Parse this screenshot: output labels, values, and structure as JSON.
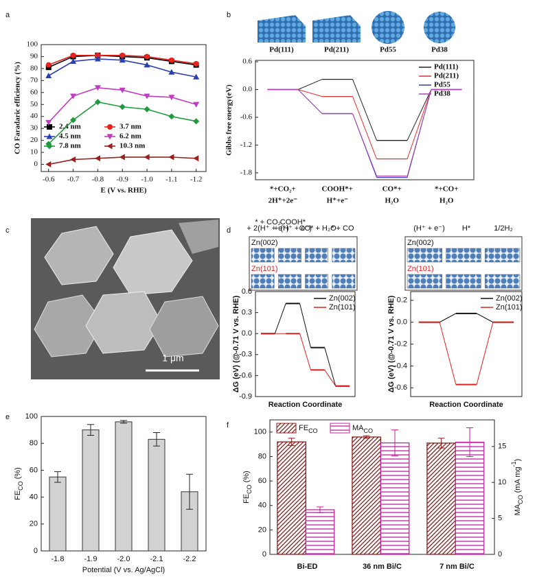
{
  "chart_data": [
    {
      "panel_label": "a",
      "type": "line",
      "xlabel": "E (V vs. RHE)",
      "ylabel": "CO Faradaric efficiency (%)",
      "x": [
        -0.6,
        -0.7,
        -0.8,
        -0.9,
        -1.0,
        -1.1,
        -1.2
      ],
      "xlim": [
        -0.57,
        -1.24
      ],
      "xticks": [
        -0.6,
        -0.7,
        -0.8,
        -0.9,
        {
          "value": -1.0,
          "label": "-1.0"
        },
        -1.1,
        -1.2
      ],
      "ylim": [
        -6,
        100
      ],
      "yticks": [
        0,
        10,
        20,
        30,
        40,
        50,
        60,
        70,
        80,
        90,
        100
      ],
      "legend": "lower left",
      "series": [
        {
          "name": "2.4 nm",
          "color": "#000000",
          "marker": "square",
          "values": [
            81,
            90,
            91,
            90,
            89,
            86,
            83
          ]
        },
        {
          "name": "3.7 nm",
          "color": "#e8221c",
          "marker": "circle",
          "values": [
            83,
            91,
            91,
            91,
            90,
            87,
            84
          ]
        },
        {
          "name": "4.5 nm",
          "color": "#2a3fb0",
          "marker": "triangle-up",
          "values": [
            74,
            86,
            88,
            87,
            83,
            77,
            73
          ]
        },
        {
          "name": "6.2 nm",
          "color": "#c03cc0",
          "marker": "triangle-down",
          "values": [
            35,
            57,
            64,
            62,
            57,
            56,
            50
          ]
        },
        {
          "name": "7.8 nm",
          "color": "#1e9a3c",
          "marker": "diamond",
          "values": [
            17,
            37,
            52,
            48,
            46,
            40,
            36
          ]
        },
        {
          "name": "10.3 nm",
          "color": "#9a2020",
          "marker": "triangle-left",
          "values": [
            0,
            4,
            5,
            6,
            6,
            6,
            5
          ]
        }
      ]
    },
    {
      "panel_label": "b",
      "type": "energy",
      "ylabel": "Gibbs free energy(eV)",
      "categories": [
        [
          "*+CO₂+",
          "2H⁺+2e⁻"
        ],
        [
          "COOH*+",
          "H⁺+e⁻"
        ],
        [
          "CO*+",
          "H₂O"
        ],
        [
          "*+CO+",
          "H₂O"
        ]
      ],
      "ylim": [
        -1.95,
        0.63
      ],
      "yticks": [
        0.6,
        {
          "value": 0,
          "label": "0.0"
        },
        -0.6,
        -1.2,
        -1.8
      ],
      "legend": "upper right",
      "series": [
        {
          "name": "Pd(111)",
          "color": "#222222",
          "values": [
            0,
            0.22,
            -1.1,
            0
          ]
        },
        {
          "name": "Pd(211)",
          "color": "#e03030",
          "values": [
            0,
            -0.15,
            -1.5,
            0
          ]
        },
        {
          "name": "Pd55",
          "color": "#3040b0",
          "values": [
            0,
            -0.52,
            -1.9,
            0
          ]
        },
        {
          "name": "Pd38",
          "color": "#b040b0",
          "values": [
            0,
            -0.52,
            -1.87,
            0
          ]
        }
      ]
    },
    {
      "panel_label": "c",
      "type": "image",
      "scale_bar": "1 μm"
    },
    {
      "panel_label": "d",
      "type": "energy",
      "xlabel": "Reaction Coordinate",
      "ylabel": "ΔG (eV) (@-0.71 V vs. RHE)",
      "categories": [
        [
          "* + CO₂",
          "+ 2(H⁺ + e⁻)"
        ],
        [
          "COOH*",
          "+ (H⁺ + e⁻)"
        ],
        [
          "CO* + H₂O"
        ],
        [
          "* + CO"
        ]
      ],
      "ylim": [
        -0.9,
        0.6
      ],
      "yticks": [
        0.6,
        0.3,
        {
          "value": 0,
          "label": "0.0"
        },
        -0.3,
        -0.6,
        -0.9
      ],
      "legend": "upper right",
      "series": [
        {
          "name": "Zn(002)",
          "color": "#111111",
          "values": [
            0,
            0.43,
            -0.2,
            -0.75
          ]
        },
        {
          "name": "Zn(101)",
          "color": "#e02020",
          "values": [
            0,
            0,
            -0.52,
            -0.75
          ]
        }
      ]
    },
    {
      "type": "energy",
      "xlabel": "Reaction Coordinate",
      "ylabel": "ΔG (eV) (@-0.71 V vs. RHE)",
      "categories": [
        [
          "(H⁺ + e⁻)"
        ],
        [
          "H*"
        ],
        [
          "1/2H₂"
        ]
      ],
      "ylim": [
        -0.68,
        0.28
      ],
      "yticks": [
        0.2,
        {
          "value": 0,
          "label": "0.0"
        },
        -0.2,
        -0.4,
        -0.6
      ],
      "legend": "upper right",
      "series": [
        {
          "name": "Zn(002)",
          "color": "#111111",
          "values": [
            0,
            0.08,
            0
          ]
        },
        {
          "name": "Zn(101)",
          "color": "#e02020",
          "values": [
            0,
            -0.57,
            0
          ]
        }
      ]
    },
    {
      "panel_label": "e",
      "type": "bar",
      "xlabel": "Potential (V vs. Ag/AgCl)",
      "ylabel": [
        "FE",
        "CO",
        " (%)"
      ],
      "categories": [
        "-1.8",
        "-1.9",
        "-2.0",
        "-2.1",
        "-2.2"
      ],
      "values": [
        55,
        90,
        96,
        83,
        44
      ],
      "errors": [
        4,
        4,
        1,
        5,
        13
      ],
      "color": "#d3d3d3",
      "ylim": [
        0,
        100
      ],
      "yticks": [
        0,
        20,
        40,
        60,
        80,
        100
      ]
    },
    {
      "panel_label": "f",
      "type": "grouped_bar",
      "ylabel": [
        "FE",
        "CO",
        " (%)"
      ],
      "y2label": [
        "MA",
        "CO",
        " (mA mg",
        "-1",
        ")"
      ],
      "categories": [
        "Bi-ED",
        "36 nm Bi/C",
        "7 nm Bi/C"
      ],
      "ylim": [
        0,
        110
      ],
      "yticks": [
        0,
        20,
        40,
        60,
        80,
        100
      ],
      "y2lim": [
        0,
        18.7
      ],
      "y2ticks": [
        0,
        5,
        10,
        15
      ],
      "legend": "upper left",
      "series": [
        {
          "name": "FE",
          "sub": "CO",
          "color": "#8b1a1a",
          "hatch": "diagonal",
          "values": [
            92,
            96,
            91
          ],
          "errors": [
            3,
            1,
            4
          ]
        },
        {
          "name": "MA",
          "sub": "CO",
          "color": "#c020a0",
          "hatch": "horizontal",
          "axis": "y2",
          "values": [
            6.2,
            15.5,
            15.6
          ],
          "errors": [
            0.4,
            1.8,
            2.0
          ]
        }
      ]
    }
  ]
}
